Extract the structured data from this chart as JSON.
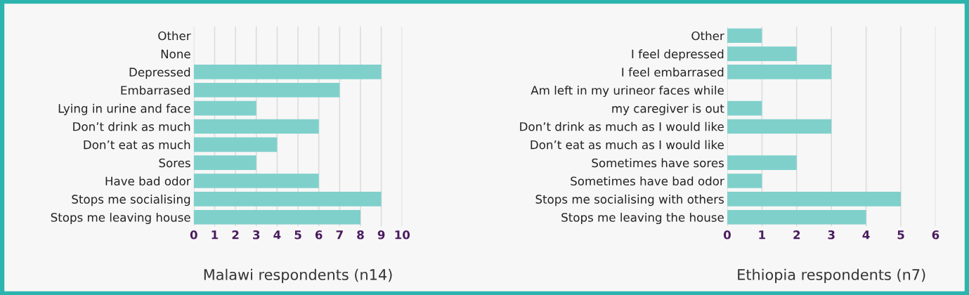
{
  "chart_data": [
    {
      "type": "bar",
      "orientation": "horizontal",
      "xlabel": "Malawi respondents (n14)",
      "categories": [
        "Other",
        "None",
        "Depressed",
        "Embarrased",
        "Lying in urine and face",
        "Don’t drink as much",
        "Don’t eat as much",
        "Sores",
        "Have bad odor",
        "Stops me socialising",
        "Stops me leaving house"
      ],
      "values": [
        0,
        0,
        9,
        7,
        3,
        6,
        4,
        3,
        6,
        9,
        8
      ],
      "color": "#7fd0cb",
      "xlim": [
        0,
        10
      ],
      "xticks": [
        0,
        1,
        2,
        3,
        4,
        5,
        6,
        7,
        8,
        9,
        10
      ],
      "grid": "x",
      "legend": false
    },
    {
      "type": "bar",
      "orientation": "horizontal",
      "xlabel": "Ethiopia respondents (n7)",
      "categories": [
        "Other",
        "I feel depressed",
        "I feel embarrased",
        "Am left in my urineor faces while",
        "my caregiver is out",
        "Don’t drink as much as I would like",
        "Don’t eat as much as I would like",
        "Sometimes have sores",
        "Sometimes have bad odor",
        "Stops me socialising with others",
        "Stops me leaving the house"
      ],
      "values": [
        1,
        2,
        3,
        0,
        1,
        3,
        0,
        2,
        1,
        5,
        4
      ],
      "color": "#7fd0cb",
      "xlim": [
        0,
        6
      ],
      "xticks": [
        0,
        1,
        2,
        3,
        4,
        5,
        6
      ],
      "grid": "x",
      "legend": false
    }
  ]
}
